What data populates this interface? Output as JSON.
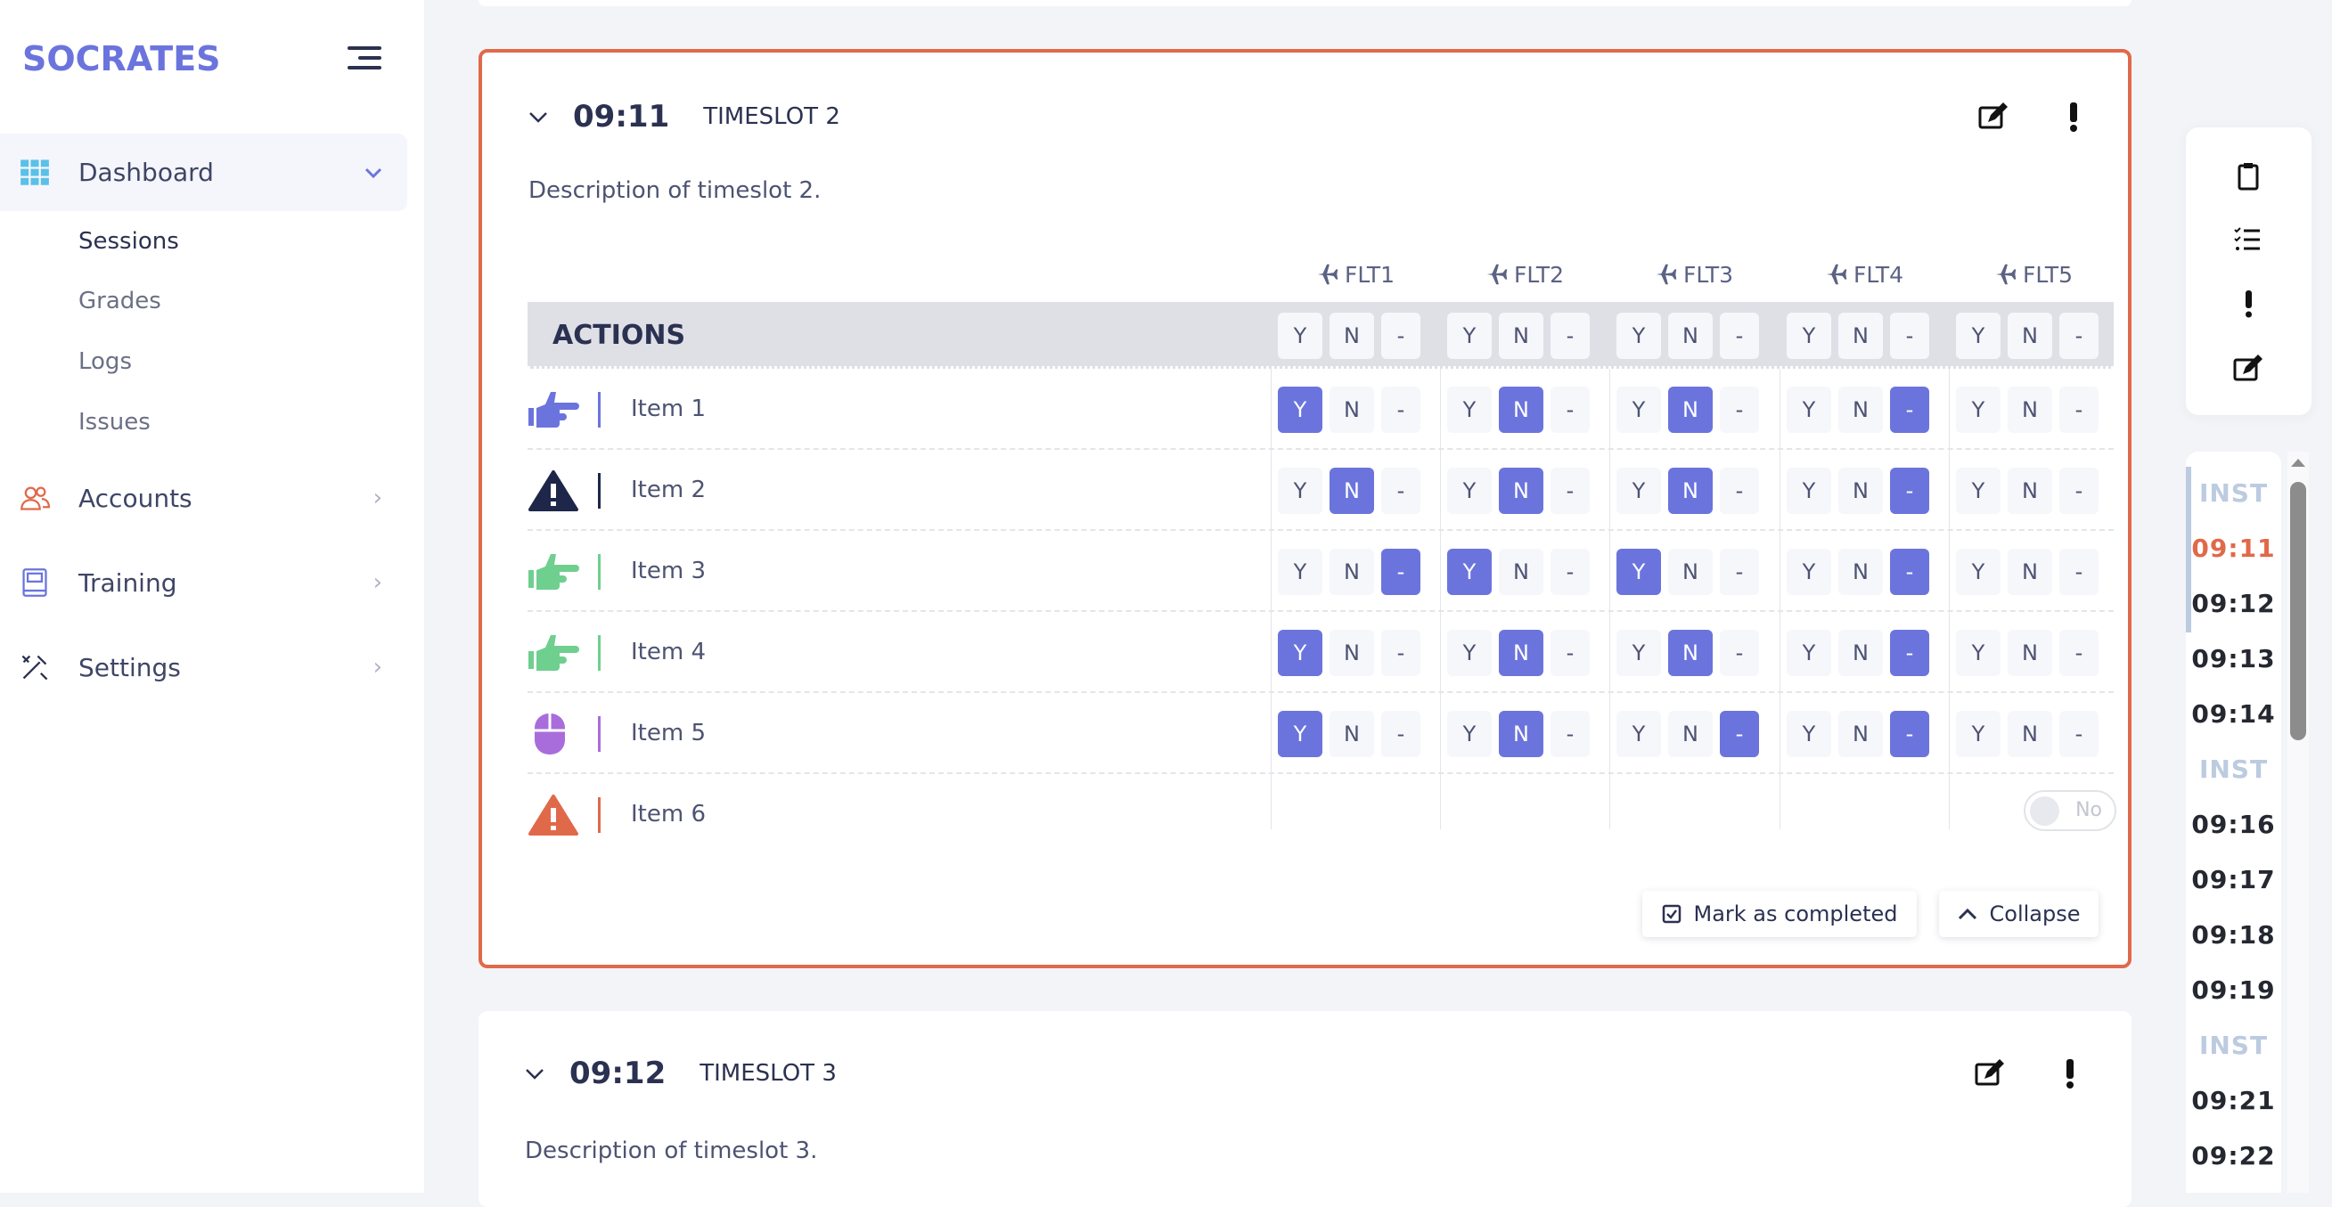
{
  "app": {
    "title": "SOCRATES"
  },
  "sidebar": {
    "dashboard": "Dashboard",
    "subitems": [
      "Sessions",
      "Grades",
      "Logs",
      "Issues"
    ],
    "items": [
      {
        "label": "Accounts",
        "icon": "users-icon"
      },
      {
        "label": "Training",
        "icon": "book-icon"
      },
      {
        "label": "Settings",
        "icon": "tools-icon"
      }
    ]
  },
  "colors": {
    "accent": "#6b74dd",
    "focus": "#e0694a",
    "selected": "#6b74dd"
  },
  "prev_card": {},
  "focus_card": {
    "time": "09:11",
    "title": "TIMESLOT 2",
    "description": "Description of timeslot 2.",
    "actions_label": "ACTIONS",
    "flights": [
      "FLT1",
      "FLT2",
      "FLT3",
      "FLT4",
      "FLT5"
    ],
    "options": [
      "Y",
      "N",
      "-"
    ],
    "items": [
      {
        "label": "Item 1",
        "icon": "hand-point-right-icon",
        "color": "#6b74dd",
        "selected": [
          "Y",
          "N",
          "N",
          "-",
          null
        ]
      },
      {
        "label": "Item 2",
        "icon": "warning-icon",
        "color": "#1e2749",
        "selected": [
          "N",
          "N",
          "N",
          "-",
          null
        ]
      },
      {
        "label": "Item 3",
        "icon": "hand-point-right-icon",
        "color": "#6fcf8f",
        "selected": [
          "-",
          "Y",
          "Y",
          "-",
          null
        ]
      },
      {
        "label": "Item 4",
        "icon": "hand-point-right-icon",
        "color": "#6fcf8f",
        "selected": [
          "Y",
          "N",
          "N",
          "-",
          null
        ]
      },
      {
        "label": "Item 5",
        "icon": "mouse-icon",
        "color": "#a96ddb",
        "selected": [
          "Y",
          "N",
          "-",
          "-",
          null
        ]
      },
      {
        "label": "Item 6",
        "icon": "warning-icon",
        "color": "#e0694a",
        "toggle": "No"
      }
    ],
    "mark_completed": "Mark as completed",
    "collapse": "Collapse"
  },
  "next_card": {
    "time": "09:12",
    "title": "TIMESLOT 3",
    "description": "Description of timeslot 3."
  },
  "right_tools": [
    "clipboard-icon",
    "checklist-icon",
    "exclamation-icon",
    "edit-icon"
  ],
  "timeline": [
    {
      "t": "INST",
      "k": "inst"
    },
    {
      "t": "09:11",
      "k": "cur"
    },
    {
      "t": "09:12"
    },
    {
      "t": "09:13"
    },
    {
      "t": "09:14"
    },
    {
      "t": "INST",
      "k": "inst"
    },
    {
      "t": "09:16"
    },
    {
      "t": "09:17"
    },
    {
      "t": "09:18"
    },
    {
      "t": "09:19"
    },
    {
      "t": "INST",
      "k": "inst"
    },
    {
      "t": "09:21"
    },
    {
      "t": "09:22"
    }
  ]
}
